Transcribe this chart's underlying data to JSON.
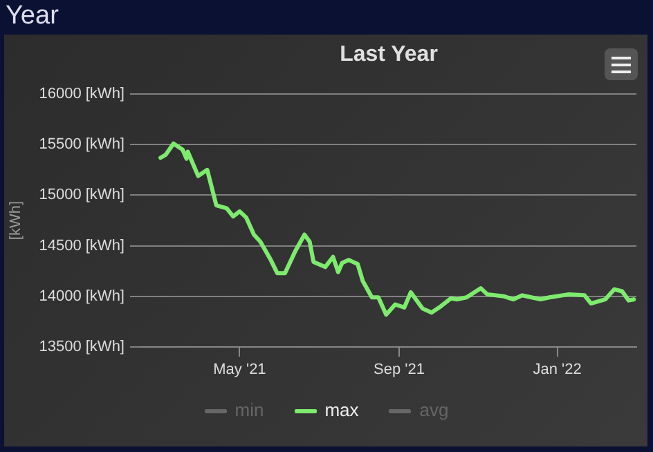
{
  "chart_data": {
    "type": "line",
    "title": "Last Year",
    "ylabel": "[kWh]",
    "annotations": [
      "Year"
    ],
    "x": [
      "2021-03-01",
      "2021-03-05",
      "2021-03-11",
      "2021-03-18",
      "2021-03-21",
      "2021-03-22",
      "2021-03-30",
      "2021-04-06",
      "2021-04-13",
      "2021-04-21",
      "2021-04-26",
      "2021-05-01",
      "2021-05-06",
      "2021-05-12",
      "2021-05-17",
      "2021-05-25",
      "2021-05-30",
      "2021-06-05",
      "2021-06-13",
      "2021-06-20",
      "2021-06-24",
      "2021-06-27",
      "2021-07-06",
      "2021-07-12",
      "2021-07-16",
      "2021-07-19",
      "2021-07-24",
      "2021-07-31",
      "2021-08-04",
      "2021-08-11",
      "2021-08-16",
      "2021-08-22",
      "2021-08-29",
      "2021-09-05",
      "2021-09-10",
      "2021-09-19",
      "2021-09-26",
      "2021-10-03",
      "2021-10-11",
      "2021-10-16",
      "2021-10-23",
      "2021-11-03",
      "2021-11-08",
      "2021-11-21",
      "2021-11-28",
      "2021-12-05",
      "2021-12-19",
      "2021-12-26",
      "2022-01-10",
      "2022-01-22",
      "2022-01-27",
      "2022-02-07",
      "2022-02-14",
      "2022-02-20",
      "2022-02-25",
      "2022-03-01"
    ],
    "series": [
      {
        "name": "min",
        "color": "#666666",
        "values": [
          null,
          null,
          null,
          null,
          null,
          null,
          null,
          null,
          null,
          null,
          null,
          null,
          null,
          null,
          null,
          null,
          null,
          null,
          null,
          null,
          null,
          null,
          null,
          null,
          null,
          null,
          null,
          null,
          null,
          null,
          null,
          null,
          null,
          null,
          null,
          null,
          null,
          null,
          null,
          null,
          null,
          null,
          null,
          null,
          null,
          null,
          null,
          null,
          null,
          null,
          null,
          null,
          null,
          null,
          null,
          null
        ]
      },
      {
        "name": "max",
        "color": "#7eea6e",
        "values": [
          15370,
          15400,
          15510,
          15450,
          15360,
          15430,
          15190,
          15250,
          14900,
          14870,
          14790,
          14840,
          14780,
          14610,
          14540,
          14360,
          14230,
          14230,
          14450,
          14610,
          14540,
          14340,
          14290,
          14390,
          14240,
          14330,
          14360,
          14320,
          14150,
          13990,
          13990,
          13820,
          13920,
          13890,
          14040,
          13880,
          13840,
          13900,
          13980,
          13970,
          13990,
          14080,
          14020,
          14000,
          13970,
          14010,
          13970,
          13990,
          14020,
          14010,
          13930,
          13970,
          14070,
          14050,
          13960,
          13970
        ]
      },
      {
        "name": "avg",
        "color": "#666666",
        "values": [
          null,
          null,
          null,
          null,
          null,
          null,
          null,
          null,
          null,
          null,
          null,
          null,
          null,
          null,
          null,
          null,
          null,
          null,
          null,
          null,
          null,
          null,
          null,
          null,
          null,
          null,
          null,
          null,
          null,
          null,
          null,
          null,
          null,
          null,
          null,
          null,
          null,
          null,
          null,
          null,
          null,
          null,
          null,
          null,
          null,
          null,
          null,
          null,
          null,
          null,
          null,
          null,
          null,
          null,
          null,
          null
        ]
      }
    ],
    "xlim": [
      "2021-02-14",
      "2022-03-03"
    ],
    "xticks": [
      {
        "value": "2021-05-01",
        "label": "May '21"
      },
      {
        "value": "2021-09-01",
        "label": "Sep '21"
      },
      {
        "value": "2022-01-01",
        "label": "Jan '22"
      }
    ],
    "ylim": [
      13500,
      16000
    ],
    "yticks": [
      {
        "value": 13500,
        "label": "13500 [kWh]"
      },
      {
        "value": 14000,
        "label": "14000 [kWh]"
      },
      {
        "value": 14500,
        "label": "14500 [kWh]"
      },
      {
        "value": 15000,
        "label": "15000 [kWh]"
      },
      {
        "value": 15500,
        "label": "15500 [kWh]"
      },
      {
        "value": 16000,
        "label": "16000 [kWh]"
      }
    ],
    "grid": "y",
    "legend": "bottom",
    "marker": "none",
    "line_style": "solid"
  }
}
